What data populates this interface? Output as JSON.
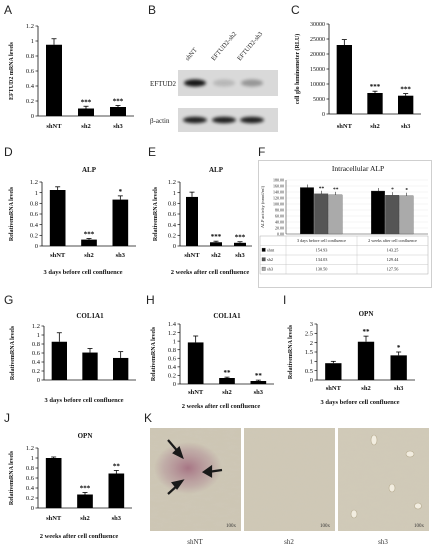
{
  "panels": {
    "A": "A",
    "B": "B",
    "C": "C",
    "D": "D",
    "E": "E",
    "F": "F",
    "G": "G",
    "H": "H",
    "I": "I",
    "J": "J",
    "K": "K"
  },
  "blot": {
    "lanes": [
      "shNT",
      "EFTUD2-sh2",
      "EFTUD2-sh3"
    ],
    "rows": [
      "EFTUD2",
      "β-actin"
    ],
    "eftud2_intensity": [
      0.9,
      0.15,
      0.3
    ],
    "actin_intensity": [
      0.85,
      0.85,
      0.85
    ]
  },
  "micrographs": {
    "labels": [
      "shNT",
      "sh2",
      "sh3"
    ],
    "scale_label": "100x"
  },
  "chart_data": [
    {
      "id": "A",
      "type": "bar",
      "categories": [
        "shNT",
        "sh2",
        "sh3"
      ],
      "values": [
        0.95,
        0.1,
        0.12
      ],
      "errors": [
        0.08,
        0.03,
        0.02
      ],
      "sig": [
        "",
        "***",
        "***"
      ],
      "ylabel": "EFTUD2 mRNA levels",
      "xlabel": "",
      "ylim": [
        0,
        1.2
      ],
      "yticks": [
        "0",
        "0.2",
        "0.4",
        "0.6",
        "0.8",
        "1",
        "1.2"
      ],
      "title": ""
    },
    {
      "id": "C",
      "type": "bar",
      "categories": [
        "shNT",
        "sh2",
        "sh3"
      ],
      "values": [
        23000,
        7000,
        6100
      ],
      "errors": [
        1800,
        600,
        700
      ],
      "sig": [
        "",
        "***",
        "***"
      ],
      "ylabel": "cell glo luminometer (RLU)",
      "xlabel": "",
      "ylim": [
        0,
        30000
      ],
      "yticks": [
        "0",
        "5000",
        "10000",
        "15000",
        "20000",
        "25000",
        "30000"
      ],
      "title": ""
    },
    {
      "id": "D",
      "type": "bar",
      "categories": [
        "shNT",
        "sh2",
        "sh3"
      ],
      "values": [
        1.05,
        0.12,
        0.87
      ],
      "errors": [
        0.06,
        0.02,
        0.07
      ],
      "sig": [
        "",
        "***",
        "*"
      ],
      "ylabel": "RelativemRNA levels",
      "xlabel": "3 days before cell confluence",
      "ylim": [
        0,
        1.2
      ],
      "yticks": [
        "0",
        "0.2",
        "0.4",
        "0.6",
        "0.8",
        "1",
        "1.2"
      ],
      "title": "ALP"
    },
    {
      "id": "E",
      "type": "bar",
      "categories": [
        "shNT",
        "sh2",
        "sh3"
      ],
      "values": [
        0.92,
        0.07,
        0.06
      ],
      "errors": [
        0.09,
        0.02,
        0.02
      ],
      "sig": [
        "",
        "***",
        "***"
      ],
      "ylabel": "RelativemRNA levels",
      "xlabel": "2 weeks after cell confluence",
      "ylim": [
        0,
        1.2
      ],
      "yticks": [
        "0",
        "0.2",
        "0.4",
        "0.6",
        "0.8",
        "1",
        "1.2"
      ],
      "title": "ALP"
    },
    {
      "id": "F",
      "type": "bar",
      "categories": [
        "3 days before cell confluence",
        "2 weeks after cell confluence"
      ],
      "series": [
        {
          "name": "shnt",
          "values": [
            154.93,
            143.25
          ],
          "color": "#000000"
        },
        {
          "name": "sh2",
          "values": [
            134.03,
            129.44
          ],
          "color": "#555555"
        },
        {
          "name": "sh3",
          "values": [
            130.5,
            127.56
          ],
          "color": "#aaaaaa"
        }
      ],
      "sig": [
        [
          "",
          "**",
          "**"
        ],
        [
          "",
          "*",
          "*"
        ]
      ],
      "ylabel": "ALP activity (nmol/ml)",
      "xlabel": "",
      "ylim": [
        0,
        180
      ],
      "yticks": [
        "0.00",
        "20.00",
        "40.00",
        "60.00",
        "80.00",
        "100.00",
        "120.00",
        "140.00",
        "160.00",
        "180.00"
      ],
      "table": [
        [
          "■ shnt",
          "154.93",
          "143.25"
        ],
        [
          "■ sh2",
          "134.03",
          "129.44"
        ],
        [
          "■ sh3",
          "130.50",
          "127.56"
        ]
      ],
      "title": "Intracellular ALP"
    },
    {
      "id": "G",
      "type": "bar",
      "categories": [
        "shNT",
        "sh2",
        "sh3"
      ],
      "values": [
        0.85,
        0.61,
        0.49
      ],
      "errors": [
        0.2,
        0.09,
        0.14
      ],
      "sig": [
        "",
        "",
        ""
      ],
      "ylabel": "RelativemRNA levels",
      "xlabel": "3 days before cell confluence",
      "ylim": [
        0,
        1.2
      ],
      "yticks": [
        "0",
        "0.2",
        "0.4",
        "0.6",
        "0.8",
        "1",
        "1.2"
      ],
      "title": "COL1A1"
    },
    {
      "id": "H",
      "type": "bar",
      "categories": [
        "shNT",
        "sh2",
        "sh3"
      ],
      "values": [
        0.97,
        0.14,
        0.07
      ],
      "errors": [
        0.15,
        0.02,
        0.02
      ],
      "sig": [
        "",
        "**",
        "**"
      ],
      "ylabel": "RelativemRNA levels",
      "xlabel": "2 weeks after cell confluence",
      "ylim": [
        0,
        1.4
      ],
      "yticks": [
        "0",
        "0.2",
        "0.4",
        "0.6",
        "0.8",
        "1",
        "1.2",
        "1.4"
      ],
      "title": "COL1A1"
    },
    {
      "id": "I",
      "type": "bar",
      "categories": [
        "shNT",
        "sh2",
        "sh3"
      ],
      "values": [
        0.9,
        2.05,
        1.32
      ],
      "errors": [
        0.1,
        0.3,
        0.18
      ],
      "sig": [
        "",
        "**",
        "*"
      ],
      "ylabel": "RelativemRNA levels",
      "xlabel": "3 days before cell confluence",
      "ylim": [
        0,
        3
      ],
      "yticks": [
        "0",
        "0.5",
        "1",
        "1.5",
        "2",
        "2.5",
        "3"
      ],
      "title": "OPN"
    },
    {
      "id": "J",
      "type": "bar",
      "categories": [
        "shNT",
        "sh2",
        "sh3"
      ],
      "values": [
        1.0,
        0.27,
        0.69
      ],
      "errors": [
        0.02,
        0.04,
        0.06
      ],
      "sig": [
        "",
        "***",
        "**"
      ],
      "ylabel": "RelativemRNA levels",
      "xlabel": "2 weeks after cell confluence",
      "ylim": [
        0,
        1.2
      ],
      "yticks": [
        "0",
        "0.2",
        "0.4",
        "0.6",
        "0.8",
        "1",
        "1.2"
      ],
      "title": "OPN"
    }
  ]
}
